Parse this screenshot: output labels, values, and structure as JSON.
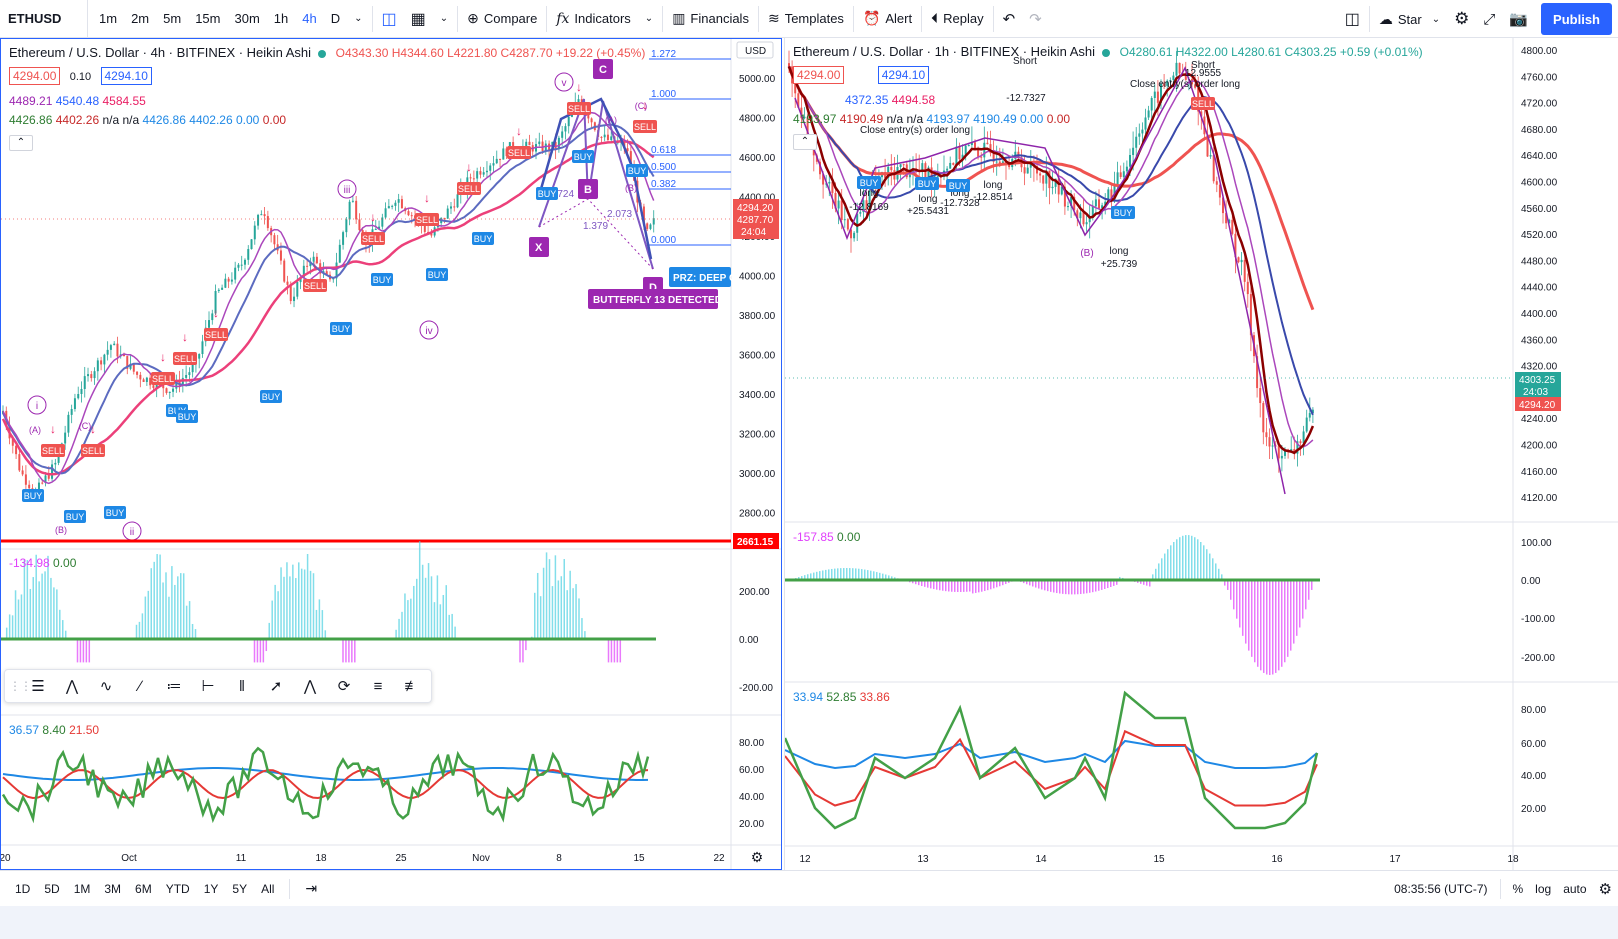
{
  "toolbar": {
    "symbol": "ETHUSD",
    "intervals": [
      "1m",
      "2m",
      "5m",
      "15m",
      "30m",
      "1h",
      "4h",
      "D"
    ],
    "active_interval": "4h",
    "compare_label": "Compare",
    "indicators_label": "Indicators",
    "financials_label": "Financials",
    "templates_label": "Templates",
    "alert_label": "Alert",
    "replay_label": "Replay",
    "star_label": "Star",
    "publish_label": "Publish"
  },
  "left_chart": {
    "title": "Ethereum / U.S. Dollar · 4h · BITFINEX · Heikin Ashi",
    "ohlc": {
      "o": "O4343.30",
      "h": "H4344.60",
      "l": "L4221.80",
      "c": "C4287.70",
      "chg": "+19.22 (+0.45%)"
    },
    "bid": "4294.00",
    "spread": "0.10",
    "ask": "4294.10",
    "ma_values": [
      "4489.21",
      "4540.48",
      "4584.55"
    ],
    "ind_values": [
      "4426.86",
      "4402.26",
      "n/a",
      "n/a",
      "4426.86",
      "4402.26",
      "0.00",
      "0.00"
    ],
    "currency": "USD",
    "y_ticks": [
      "5000.00",
      "4800.00",
      "4600.00",
      "4400.00",
      "4200.00",
      "4000.00",
      "3800.00",
      "3600.00",
      "3400.00",
      "3200.00",
      "3000.00",
      "2800.00"
    ],
    "price_tag_1": "4294.20",
    "price_tag_2": "4287.70",
    "price_tag_timer": "24:04",
    "support_tag": "2661.15",
    "fib_labels": [
      "1.272",
      "1.000",
      "0.618",
      "0.500",
      "0.382",
      "0.000"
    ],
    "harmonic_labels": [
      "X",
      "B",
      "C",
      "D"
    ],
    "ratio_labels": [
      "0.724",
      "2.073",
      "1.379"
    ],
    "prz_label": "PRZ: DEEP C",
    "butterfly_label": "BUTTERFLY 13 DETECTED",
    "wave_labels": [
      "i",
      "ii",
      "iii",
      "iv",
      "v"
    ],
    "corrective_labels": [
      "(A)",
      "(B)",
      "(C)",
      "(A)",
      "(B)",
      "(C)"
    ],
    "osc1_values": [
      "-134.98",
      "0.00"
    ],
    "osc1_ticks": [
      "200.00",
      "0.00",
      "-200.00"
    ],
    "osc2_values": [
      "36.57",
      "8.40",
      "21.50"
    ],
    "osc2_ticks": [
      "80.00",
      "60.00",
      "40.00",
      "20.00"
    ],
    "x_ticks": [
      "20",
      "Oct",
      "11",
      "18",
      "25",
      "Nov",
      "8",
      "15",
      "22"
    ]
  },
  "right_chart": {
    "title": "Ethereum / U.S. Dollar · 1h · BITFINEX · Heikin Ashi",
    "ohlc": {
      "o": "O4280.61",
      "h": "H4322.00",
      "l": "L4280.61",
      "c": "C4303.25",
      "chg": "+0.59 (+0.01%)"
    },
    "bid": "4294.00",
    "ask": "4294.10",
    "ma_values": [
      "4372.35",
      "4494.58"
    ],
    "ind_values": [
      "4193.97",
      "4190.49",
      "n/a",
      "n/a",
      "4193.97",
      "4190.49",
      "0.00",
      "0.00"
    ],
    "y_ticks": [
      "4800.00",
      "4760.00",
      "4720.00",
      "4680.00",
      "4640.00",
      "4600.00",
      "4560.00",
      "4520.00",
      "4480.00",
      "4440.00",
      "4400.00",
      "4360.00",
      "4320.00",
      "4280.00",
      "4240.00",
      "4200.00",
      "4160.00",
      "4120.00"
    ],
    "price_tag_1": "4303.25",
    "price_tag_timer": "24:03",
    "price_tag_2": "4294.20",
    "annotations": [
      "Short",
      "Short",
      "Close entry(s) order long",
      "-12.7327",
      "12.9555",
      "Close entry(s) order long",
      "long",
      "-12.8169",
      "long",
      "+25.5431",
      "long",
      "-12.7328",
      "long",
      "-12.8514",
      "long",
      "+25.739",
      "(B)"
    ],
    "osc1_values": [
      "-157.85",
      "0.00"
    ],
    "osc1_ticks": [
      "100.00",
      "0.00",
      "-100.00",
      "-200.00"
    ],
    "osc2_values": [
      "33.94",
      "52.85",
      "33.86"
    ],
    "osc2_ticks": [
      "80.00",
      "60.00",
      "40.00",
      "20.00"
    ],
    "x_ticks": [
      "12",
      "13",
      "14",
      "15",
      "16",
      "17",
      "18"
    ]
  },
  "bottombar": {
    "ranges": [
      "1D",
      "5D",
      "1M",
      "3M",
      "6M",
      "YTD",
      "1Y",
      "5Y",
      "All"
    ],
    "clock": "08:35:56 (UTC-7)",
    "percent_label": "%",
    "log_label": "log",
    "auto_label": "auto"
  }
}
